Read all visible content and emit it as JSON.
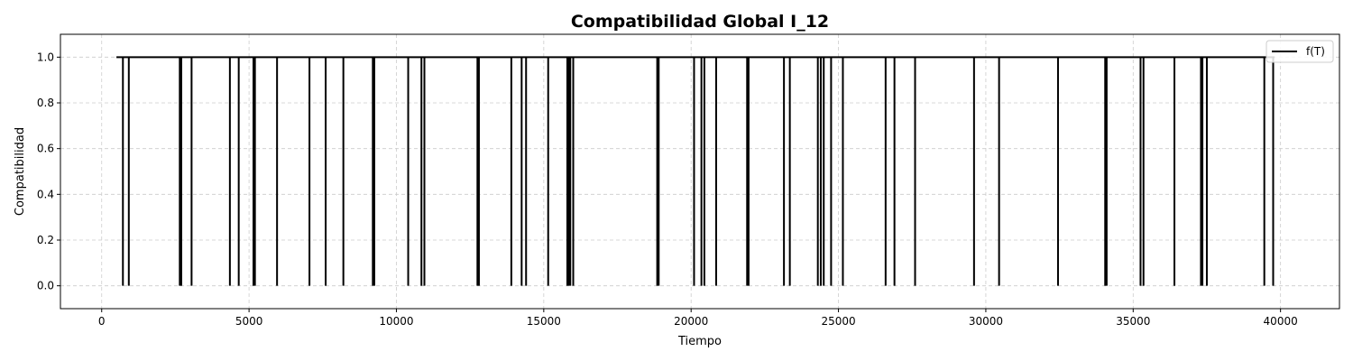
{
  "chart_data": {
    "type": "line",
    "title": "Compatibilidad Global I_12",
    "xlabel": "Tiempo",
    "ylabel": "Compatibilidad",
    "xlim": [
      -1400,
      42000
    ],
    "ylim": [
      -0.1,
      1.1
    ],
    "xticks": [
      0,
      5000,
      10000,
      15000,
      20000,
      25000,
      30000,
      35000,
      40000
    ],
    "xtick_labels": [
      "0",
      "5000",
      "10000",
      "15000",
      "20000",
      "25000",
      "30000",
      "35000",
      "40000"
    ],
    "yticks": [
      0.0,
      0.2,
      0.4,
      0.6,
      0.8,
      1.0
    ],
    "ytick_labels": [
      "0.0",
      "0.2",
      "0.4",
      "0.6",
      "0.8",
      "1.0"
    ],
    "grid": true,
    "legend_position": "top-right",
    "line_color": "#000000",
    "series": [
      {
        "name": "f(T)",
        "x_start": 500,
        "x_end": 39800,
        "baseline_value": 1.0,
        "drop_value": 0.0,
        "drop_times": [
          720,
          920,
          2650,
          2700,
          3050,
          4350,
          4650,
          5150,
          5200,
          5950,
          7050,
          7600,
          8200,
          9200,
          9250,
          10400,
          10850,
          10950,
          12750,
          12800,
          13900,
          14250,
          14400,
          15150,
          15800,
          15850,
          15900,
          16000,
          18850,
          18900,
          20100,
          20350,
          20450,
          20850,
          21900,
          21950,
          23150,
          23350,
          24300,
          24400,
          24500,
          24750,
          25150,
          26600,
          26900,
          27600,
          29600,
          30450,
          32450,
          34050,
          34100,
          35250,
          35350,
          36400,
          37300,
          37350,
          37500,
          39450,
          39750
        ]
      }
    ]
  }
}
